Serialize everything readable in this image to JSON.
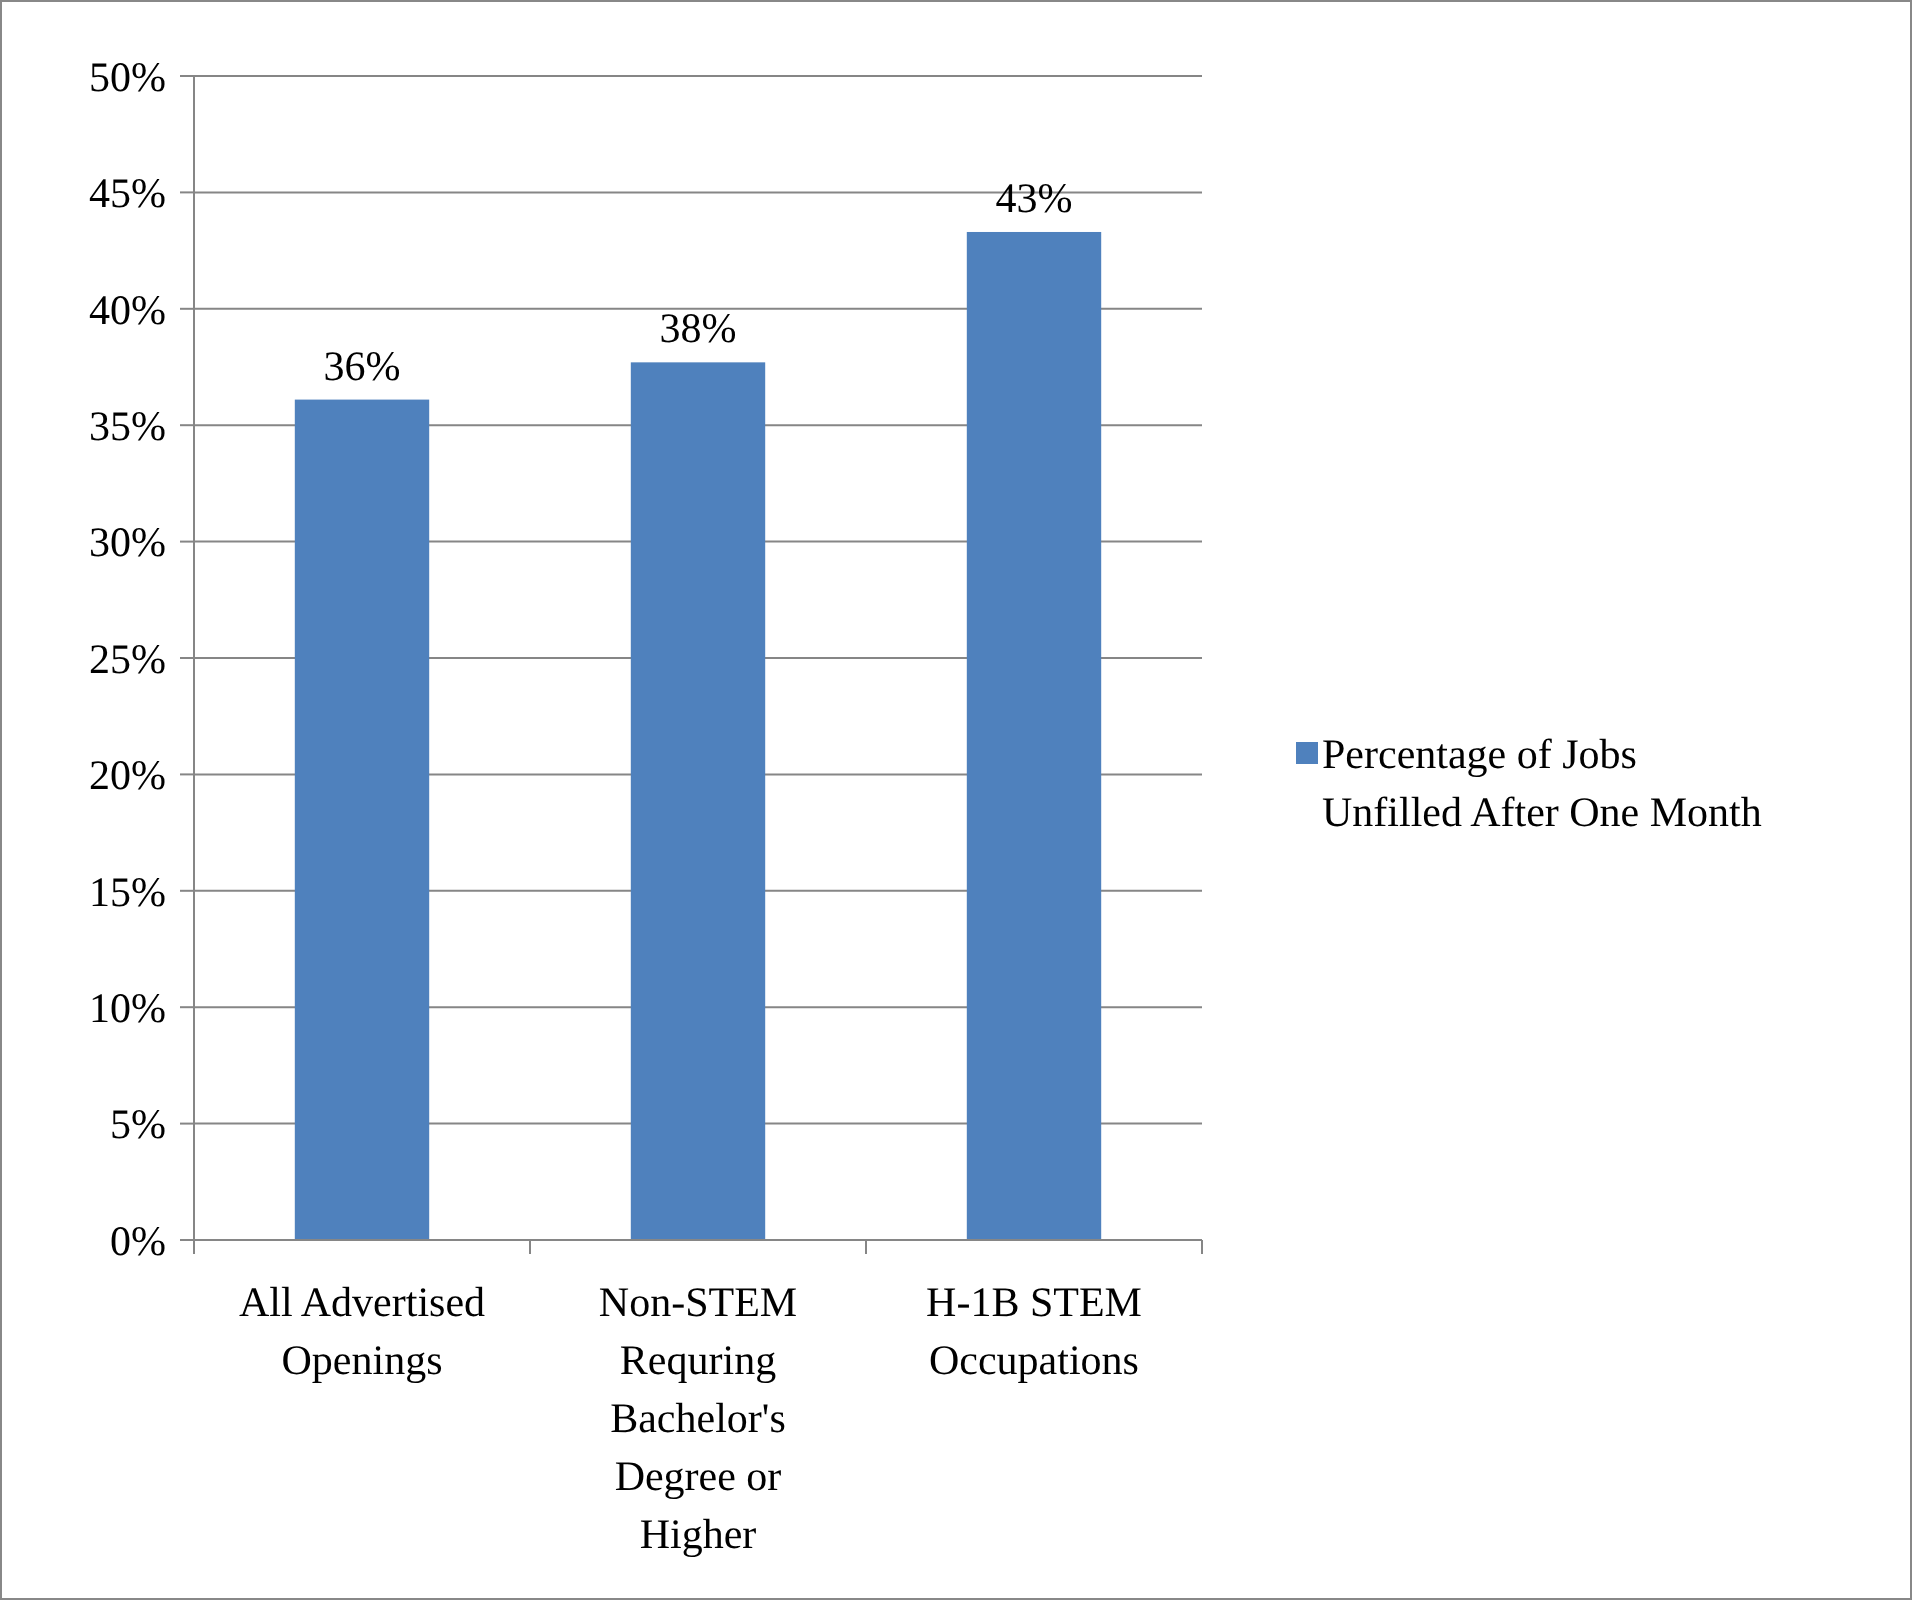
{
  "chart_data": {
    "type": "bar",
    "categories": [
      "All Advertised Openings",
      "Non-STEM Requring Bachelor's Degree or Higher",
      "H-1B STEM Occupations"
    ],
    "series": [
      {
        "name": "Percentage of Jobs Unfilled After One Month",
        "color": "#4f81bd",
        "values": [
          36.1,
          37.7,
          43.3
        ],
        "value_labels": [
          "36%",
          "38%",
          "43%"
        ]
      }
    ],
    "ylim": [
      0,
      50
    ],
    "yticks": [
      {
        "value": 0,
        "label": "0%"
      },
      {
        "value": 5,
        "label": "5%"
      },
      {
        "value": 10,
        "label": "10%"
      },
      {
        "value": 15,
        "label": "15%"
      },
      {
        "value": 20,
        "label": "20%"
      },
      {
        "value": 25,
        "label": "25%"
      },
      {
        "value": 30,
        "label": "30%"
      },
      {
        "value": 35,
        "label": "35%"
      },
      {
        "value": 40,
        "label": "40%"
      },
      {
        "value": 45,
        "label": "45%"
      },
      {
        "value": 50,
        "label": "50%"
      }
    ],
    "grid": "y",
    "legend": "right"
  }
}
